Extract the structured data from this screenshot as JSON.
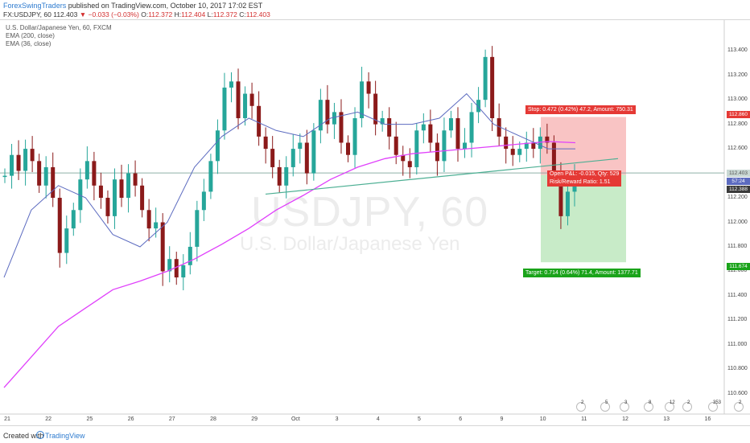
{
  "header": {
    "author": "ForexSwingTraders",
    "published": "published on TradingView.com, October 10, 2017 17:02 EST",
    "symbol": "FX:USDJPY, 60",
    "last": "112.403",
    "change": "−0.033 (−0.03%)",
    "open_label": "O:",
    "open": "112.372",
    "high_label": "H:",
    "high": "112.404",
    "low_label": "L:",
    "low": "112.372",
    "close_label": "C:",
    "close": "112.403"
  },
  "legend": {
    "title": "U.S. Dollar/Japanese Yen, 60, FXCM",
    "ema200": "EMA (200, close)",
    "ema36": "EMA (36, close)"
  },
  "watermark": {
    "ticker": "USDJPY, 60",
    "name": "U.S. Dollar/Japanese Yen"
  },
  "position": {
    "stop": "Stop: 0.472 (0.42%) 47.2, Amount: 750.31",
    "target": "Target: 0.714 (0.64%) 71.4, Amount: 1377.71",
    "pnl": "Open P&L: -0.015, Qty: 529",
    "rr": "Risk/Reward Ratio: 1.51"
  },
  "price_tags": {
    "stop": "112.860",
    "current": "112.403",
    "ema": "57:24",
    "entry": "112.388",
    "target": "111.674"
  },
  "footer": {
    "created_with": "Created with",
    "brand": "TradingView"
  },
  "events": [
    "2",
    "5",
    "3",
    "8",
    "12",
    "2",
    "353",
    "2",
    "2"
  ],
  "colors": {
    "up_candle": "#26a69a",
    "down_candle": "#8b1a1a",
    "ema200": "#e040fb",
    "ema36": "#5c6bc0",
    "trendline": "#4caf93",
    "stop_zone": "#f9c4c4",
    "target_zone": "#c8ebc8",
    "current_price_line": "#8fb0a8"
  },
  "chart_data": {
    "type": "candlestick",
    "ylim": [
      110.5,
      113.5
    ],
    "y_ticks": [
      "113.400",
      "113.200",
      "113.000",
      "112.800",
      "112.600",
      "112.400",
      "112.200",
      "112.000",
      "111.800",
      "111.600",
      "111.400",
      "111.200",
      "111.000",
      "110.800",
      "110.600"
    ],
    "x_ticks": [
      "21",
      "22",
      "25",
      "26",
      "27",
      "28",
      "29",
      "Oct",
      "3",
      "4",
      "5",
      "6",
      "9",
      "10",
      "11",
      "12",
      "13",
      "16"
    ],
    "series_ohlc_close": [
      112.38,
      112.55,
      112.42,
      112.6,
      112.5,
      112.3,
      112.45,
      112.2,
      111.75,
      111.95,
      112.1,
      112.35,
      112.5,
      112.3,
      112.2,
      112.05,
      112.35,
      112.2,
      112.4,
      112.3,
      112.1,
      111.95,
      112.0,
      111.6,
      111.7,
      111.55,
      111.65,
      111.8,
      112.1,
      112.25,
      112.5,
      112.75,
      113.1,
      113.15,
      112.85,
      113.05,
      112.95,
      112.7,
      112.6,
      112.45,
      112.3,
      112.45,
      112.6,
      112.65,
      112.4,
      112.75,
      113.0,
      112.8,
      112.9,
      112.65,
      112.55,
      112.85,
      113.15,
      113.05,
      112.8,
      112.85,
      112.7,
      112.55,
      112.5,
      112.45,
      112.75,
      112.8,
      112.65,
      112.5,
      112.75,
      112.85,
      112.6,
      112.65,
      112.9,
      113.0,
      113.35,
      112.85,
      112.7,
      112.6,
      112.55,
      112.6,
      112.65,
      112.6,
      112.7,
      112.65,
      112.4,
      112.05,
      112.25,
      112.4
    ],
    "ema200": [
      110.65,
      110.9,
      111.15,
      111.3,
      111.45,
      111.52,
      111.6,
      111.7,
      111.82,
      111.95,
      112.1,
      112.22,
      112.35,
      112.45,
      112.52,
      112.56,
      112.58,
      112.6,
      112.62,
      112.64,
      112.66,
      112.65
    ],
    "ema36": [
      111.55,
      112.1,
      112.3,
      112.2,
      111.9,
      111.8,
      112.0,
      112.45,
      112.7,
      112.85,
      112.75,
      112.7,
      112.85,
      112.9,
      112.8,
      112.8,
      112.85,
      113.05,
      112.8,
      112.7,
      112.6,
      112.6
    ],
    "trendline": [
      [
        22.5,
        112.23
      ],
      [
        31,
        112.52
      ]
    ],
    "position": {
      "entry": 112.388,
      "stop": 112.86,
      "target": 111.674,
      "current": 112.403
    }
  }
}
